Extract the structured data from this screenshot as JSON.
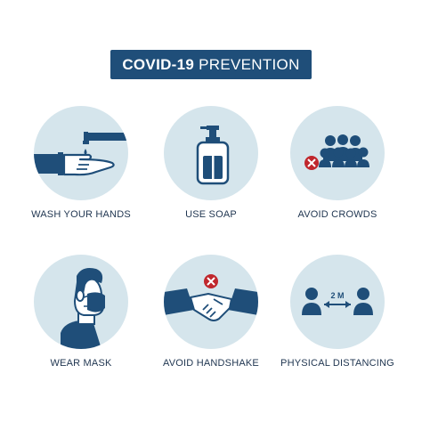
{
  "title": {
    "bold": "COVID-19",
    "light": "PREVENTION"
  },
  "colors": {
    "navy": "#1f4e79",
    "circle": "#d5e5ec",
    "red": "#c0272d"
  },
  "cards": [
    {
      "label": "WASH YOUR HANDS",
      "icon": "hand-washing-icon"
    },
    {
      "label": "USE SOAP",
      "icon": "soap-bottle-icon"
    },
    {
      "label": "AVOID CROWDS",
      "icon": "crowd-icon"
    },
    {
      "label": "WEAR MASK",
      "icon": "face-mask-icon"
    },
    {
      "label": "AVOID HANDSHAKE",
      "icon": "handshake-icon"
    },
    {
      "label": "PHYSICAL DISTANCING",
      "icon": "distancing-icon"
    }
  ],
  "distance_label": "2 M"
}
